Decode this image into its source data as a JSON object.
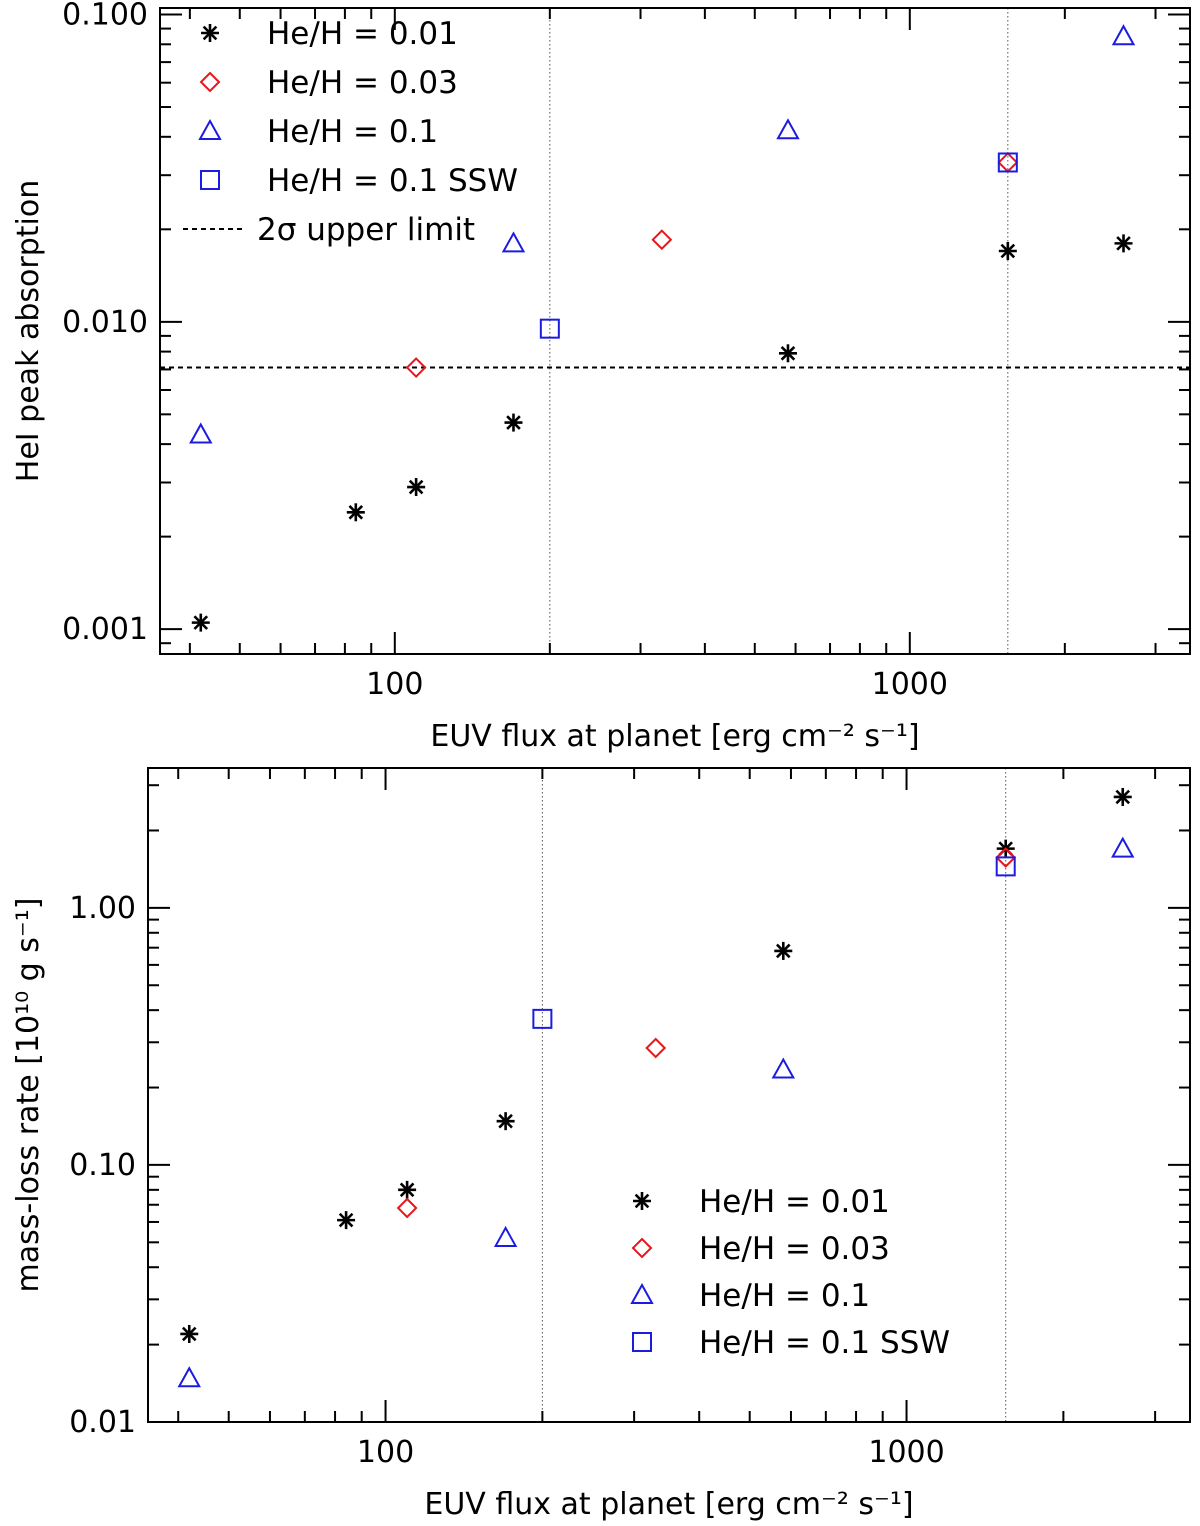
{
  "chart_data": [
    {
      "type": "scatter",
      "xlabel": "EUV flux at planet [erg cm⁻² s⁻¹]",
      "ylabel": "HeI peak absorption",
      "xscale": "log",
      "yscale": "log",
      "xlim": [
        35,
        3500
      ],
      "ylim": [
        0.00083,
        0.105
      ],
      "xticks": [
        {
          "value": 100,
          "label": "100"
        },
        {
          "value": 1000,
          "label": "1000"
        }
      ],
      "yticks": [
        {
          "value": 0.001,
          "label": "0.001"
        },
        {
          "value": 0.01,
          "label": "0.010"
        },
        {
          "value": 0.1,
          "label": "0.100"
        }
      ],
      "vlines": [
        200,
        1550
      ],
      "hline": {
        "value": 0.0071,
        "label": "2σ upper limit"
      },
      "legend_position": "top-left",
      "series": [
        {
          "name": "He/H = 0.01",
          "marker": "asterisk",
          "color": "#000000",
          "points": [
            [
              42,
              0.00105
            ],
            [
              84,
              0.0024
            ],
            [
              110,
              0.0029
            ],
            [
              170,
              0.0047
            ],
            [
              580,
              0.0079
            ],
            [
              1550,
              0.017
            ],
            [
              2600,
              0.018
            ]
          ]
        },
        {
          "name": "He/H = 0.03",
          "marker": "diamond",
          "color": "#e8161b",
          "points": [
            [
              110,
              0.0071
            ],
            [
              330,
              0.0185
            ],
            [
              1550,
              0.033
            ]
          ]
        },
        {
          "name": "He/H = 0.1",
          "marker": "triangle",
          "color": "#1c1ce0",
          "points": [
            [
              42,
              0.0043
            ],
            [
              170,
              0.018
            ],
            [
              580,
              0.042
            ],
            [
              2600,
              0.085
            ]
          ]
        },
        {
          "name": "He/H = 0.1 SSW",
          "marker": "square",
          "color": "#1c1ce0",
          "points": [
            [
              200,
              0.0095
            ],
            [
              1550,
              0.033
            ]
          ]
        }
      ]
    },
    {
      "type": "scatter",
      "xlabel": "EUV flux at planet [erg cm⁻² s⁻¹]",
      "ylabel": "mass-loss rate [10¹⁰ g s⁻¹]",
      "xscale": "log",
      "yscale": "log",
      "xlim": [
        35,
        3500
      ],
      "ylim": [
        0.01,
        3.5
      ],
      "xticks": [
        {
          "value": 100,
          "label": "100"
        },
        {
          "value": 1000,
          "label": "1000"
        }
      ],
      "yticks": [
        {
          "value": 0.01,
          "label": "0.01"
        },
        {
          "value": 0.1,
          "label": "0.10"
        },
        {
          "value": 1,
          "label": "1.00"
        }
      ],
      "vlines": [
        200,
        1550
      ],
      "legend_position": "bottom-center",
      "series": [
        {
          "name": "He/H = 0.01",
          "marker": "asterisk",
          "color": "#000000",
          "points": [
            [
              42,
              0.022
            ],
            [
              84,
              0.061
            ],
            [
              110,
              0.08
            ],
            [
              170,
              0.148
            ],
            [
              580,
              0.68
            ],
            [
              1550,
              1.7
            ],
            [
              2600,
              2.7
            ]
          ]
        },
        {
          "name": "He/H = 0.03",
          "marker": "diamond",
          "color": "#e8161b",
          "points": [
            [
              110,
              0.068
            ],
            [
              330,
              0.285
            ],
            [
              1550,
              1.57
            ]
          ]
        },
        {
          "name": "He/H = 0.1",
          "marker": "triangle",
          "color": "#1c1ce0",
          "points": [
            [
              42,
              0.0148
            ],
            [
              170,
              0.052
            ],
            [
              580,
              0.235
            ],
            [
              2600,
              1.7
            ]
          ]
        },
        {
          "name": "He/H = 0.1 SSW",
          "marker": "square",
          "color": "#1c1ce0",
          "points": [
            [
              200,
              0.37
            ],
            [
              1550,
              1.45
            ]
          ]
        }
      ]
    }
  ]
}
